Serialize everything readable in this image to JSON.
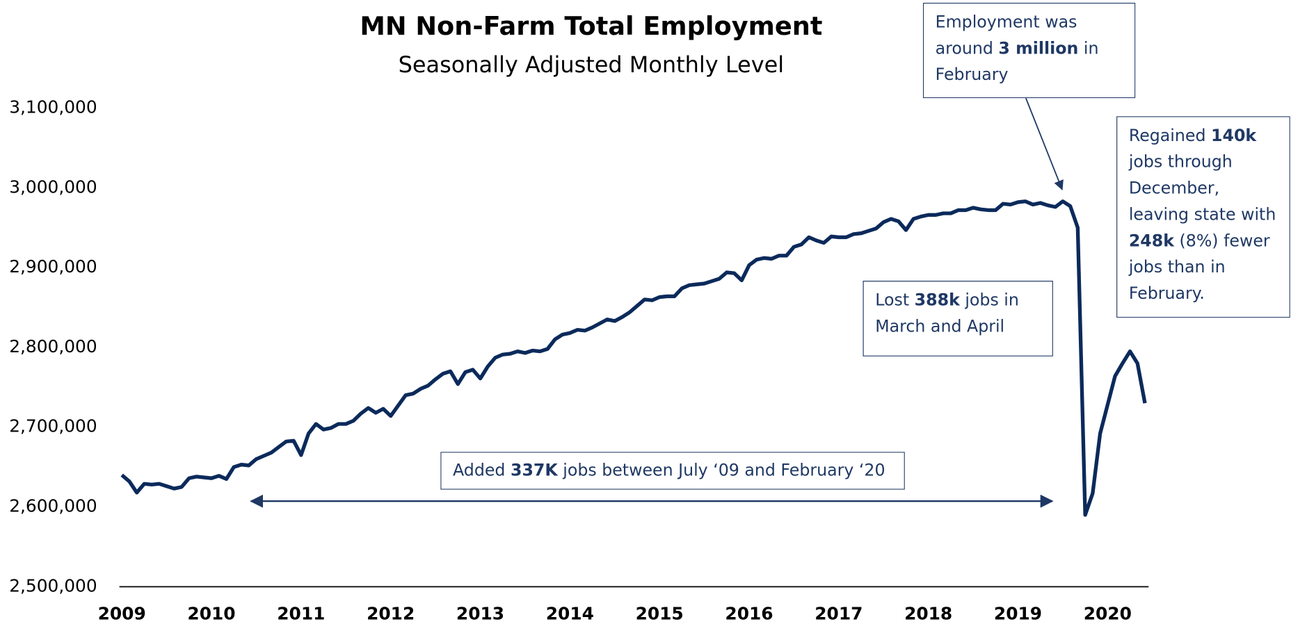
{
  "chart_data": {
    "type": "line",
    "title": "MN Non-Farm Total Employment",
    "subtitle": "Seasonally Adjusted Monthly Level",
    "color": "#0b2a5b",
    "categories": [
      "2009",
      null,
      null,
      null,
      null,
      null,
      null,
      null,
      null,
      null,
      null,
      null,
      "2010",
      null,
      null,
      null,
      null,
      null,
      null,
      null,
      null,
      null,
      null,
      null,
      "2011",
      null,
      null,
      null,
      null,
      null,
      null,
      null,
      null,
      null,
      null,
      null,
      "2012",
      null,
      null,
      null,
      null,
      null,
      null,
      null,
      null,
      null,
      null,
      null,
      "2013",
      null,
      null,
      null,
      null,
      null,
      null,
      null,
      null,
      null,
      null,
      null,
      "2014",
      null,
      null,
      null,
      null,
      null,
      null,
      null,
      null,
      null,
      null,
      null,
      "2015",
      null,
      null,
      null,
      null,
      null,
      null,
      null,
      null,
      null,
      null,
      null,
      "2016",
      null,
      null,
      null,
      null,
      null,
      null,
      null,
      null,
      null,
      null,
      null,
      "2017",
      null,
      null,
      null,
      null,
      null,
      null,
      null,
      null,
      null,
      null,
      null,
      "2018",
      null,
      null,
      null,
      null,
      null,
      null,
      null,
      null,
      null,
      null,
      null,
      "2019",
      null,
      null,
      null,
      null,
      null,
      null,
      null,
      null,
      null,
      null,
      null,
      "2020",
      null,
      null,
      null,
      null,
      null
    ],
    "values": [
      2640000,
      2632000,
      2618000,
      2629000,
      2628000,
      2629000,
      2626000,
      2623000,
      2625000,
      2636000,
      2638000,
      2637000,
      2636000,
      2639000,
      2635000,
      2650000,
      2653000,
      2652000,
      2660000,
      2664000,
      2668000,
      2675000,
      2682000,
      2683000,
      2665000,
      2692000,
      2704000,
      2697000,
      2699000,
      2704000,
      2704000,
      2708000,
      2717000,
      2724000,
      2718000,
      2723000,
      2714000,
      2727000,
      2740000,
      2742000,
      2748000,
      2752000,
      2760000,
      2767000,
      2770000,
      2754000,
      2769000,
      2772000,
      2761000,
      2776000,
      2787000,
      2791000,
      2792000,
      2795000,
      2793000,
      2796000,
      2795000,
      2798000,
      2810000,
      2816000,
      2818000,
      2822000,
      2821000,
      2825000,
      2830000,
      2835000,
      2833000,
      2838000,
      2844000,
      2852000,
      2860000,
      2859000,
      2863000,
      2864000,
      2864000,
      2874000,
      2878000,
      2879000,
      2880000,
      2883000,
      2886000,
      2894000,
      2893000,
      2884000,
      2903000,
      2910000,
      2912000,
      2911000,
      2915000,
      2915000,
      2926000,
      2929000,
      2938000,
      2934000,
      2931000,
      2939000,
      2938000,
      2938000,
      2942000,
      2943000,
      2946000,
      2949000,
      2957000,
      2961000,
      2958000,
      2947000,
      2961000,
      2964000,
      2966000,
      2966000,
      2968000,
      2968000,
      2972000,
      2972000,
      2975000,
      2973000,
      2972000,
      2972000,
      2980000,
      2979000,
      2982000,
      2983000,
      2979000,
      2981000,
      2978000,
      2976000,
      2983000,
      2977000,
      2950000,
      2590000,
      2617000,
      2692000,
      2728000,
      2764000,
      2780000,
      2795000,
      2780000,
      2730000
    ],
    "ylim": [
      2500000,
      3100000
    ],
    "yticks": [
      {
        "value": 2500000,
        "label": "2,500,000"
      },
      {
        "value": 2600000,
        "label": "2,600,000"
      },
      {
        "value": 2700000,
        "label": "2,700,000"
      },
      {
        "value": 2800000,
        "label": "2,800,000"
      },
      {
        "value": 2900000,
        "label": "2,900,000"
      },
      {
        "value": 3000000,
        "label": "3,000,000"
      },
      {
        "value": 3100000,
        "label": "3,100,000"
      }
    ],
    "grid": false,
    "annotations": [
      {
        "runs": [
          {
            "text": "Employment was around "
          },
          {
            "text": "3 million",
            "bold": true
          },
          {
            "text": " in February"
          }
        ]
      },
      {
        "runs": [
          {
            "text": "Regained "
          },
          {
            "text": "140k",
            "bold": true
          },
          {
            "text": " jobs through December, leaving state with "
          },
          {
            "text": "248k",
            "bold": true
          },
          {
            "text": " (8%) fewer jobs than in February."
          }
        ]
      },
      {
        "runs": [
          {
            "text": "Lost "
          },
          {
            "text": "388k",
            "bold": true
          },
          {
            "text": " jobs in March and April"
          }
        ]
      },
      {
        "runs": [
          {
            "text": "Added "
          },
          {
            "text": "337K",
            "bold": true
          },
          {
            "text": " jobs between July ‘09 and February ‘20"
          }
        ]
      }
    ]
  }
}
